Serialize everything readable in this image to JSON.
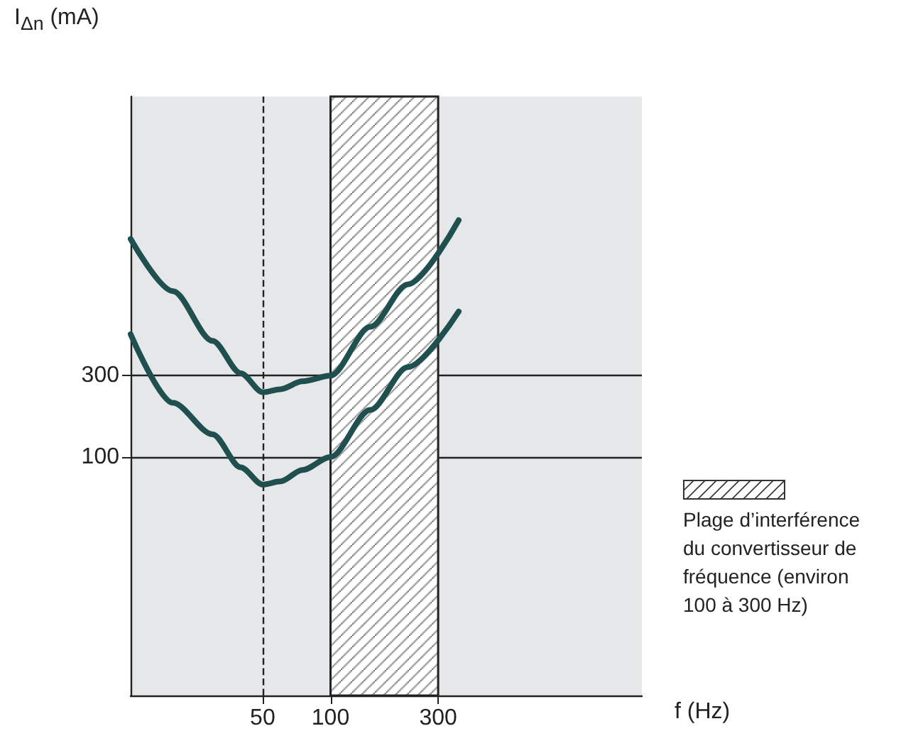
{
  "chart_data": {
    "type": "line",
    "xlabel": "f (Hz)",
    "ylabel": "I$_{Δn}$ (mA)",
    "log": "xy",
    "xlim": [
      13,
      2400
    ],
    "xticks": [
      50,
      100,
      300
    ],
    "ylim": [
      4,
      13000
    ],
    "yticks": [
      100,
      300
    ],
    "grid": "y",
    "marker": "none",
    "line_style": "solid",
    "series": [
      {
        "color": "#1f4f4f",
        "x": [
          13,
          20,
          30,
          40,
          50,
          60,
          75,
          100,
          150,
          220,
          370
        ],
        "values": [
          1900,
          940,
          480,
          310,
          240,
          250,
          278,
          300,
          580,
          1030,
          2450
        ]
      },
      {
        "color": "#1f4f4f",
        "x": [
          13,
          20,
          30,
          40,
          50,
          60,
          75,
          100,
          150,
          220,
          370
        ],
        "values": [
          525,
          208,
          136,
          87,
          69,
          72,
          84,
          100,
          189,
          337,
          714
        ]
      }
    ],
    "ref_lines": [
      {
        "axis": "x",
        "value": 50,
        "line_style": "dashed",
        "color": "#222222"
      }
    ],
    "bands": [
      {
        "axis": "x",
        "from": 100,
        "to": 300,
        "label": "Plage d’interférence du convertisseur de fréquence (environ 100 à 300 Hz)"
      }
    ]
  }
}
